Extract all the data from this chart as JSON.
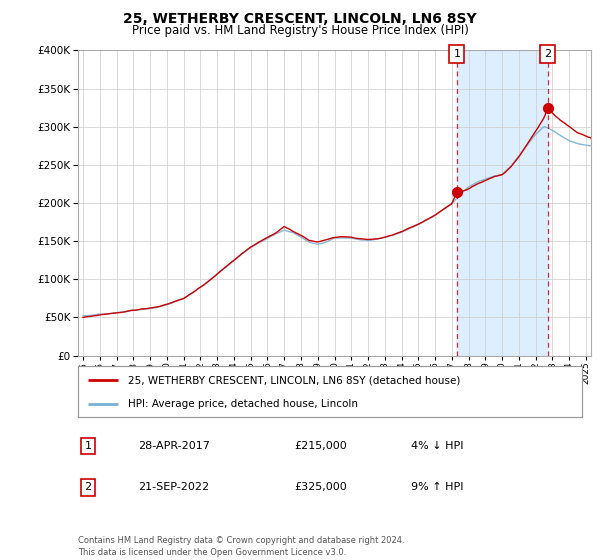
{
  "title": "25, WETHERBY CRESCENT, LINCOLN, LN6 8SY",
  "subtitle": "Price paid vs. HM Land Registry's House Price Index (HPI)",
  "legend_line1": "25, WETHERBY CRESCENT, LINCOLN, LN6 8SY (detached house)",
  "legend_line2": "HPI: Average price, detached house, Lincoln",
  "transaction1_label": "1",
  "transaction1_date": "28-APR-2017",
  "transaction1_price": "£215,000",
  "transaction1_hpi": "4% ↓ HPI",
  "transaction2_label": "2",
  "transaction2_date": "21-SEP-2022",
  "transaction2_price": "£325,000",
  "transaction2_hpi": "9% ↑ HPI",
  "footer": "Contains HM Land Registry data © Crown copyright and database right 2024.\nThis data is licensed under the Open Government Licence v3.0.",
  "red_color": "#cc0000",
  "blue_color": "#7ab0d4",
  "shade_color": "#ddeeff",
  "background_color": "#ffffff",
  "grid_color": "#cccccc",
  "ylim": [
    0,
    400000
  ],
  "yticks": [
    0,
    50000,
    100000,
    150000,
    200000,
    250000,
    300000,
    350000,
    400000
  ],
  "transaction1_x": 2017.3,
  "transaction2_x": 2022.72,
  "transaction1_y": 215000,
  "transaction2_y": 325000,
  "xlim_left": 1995.0,
  "xlim_right": 2025.3
}
